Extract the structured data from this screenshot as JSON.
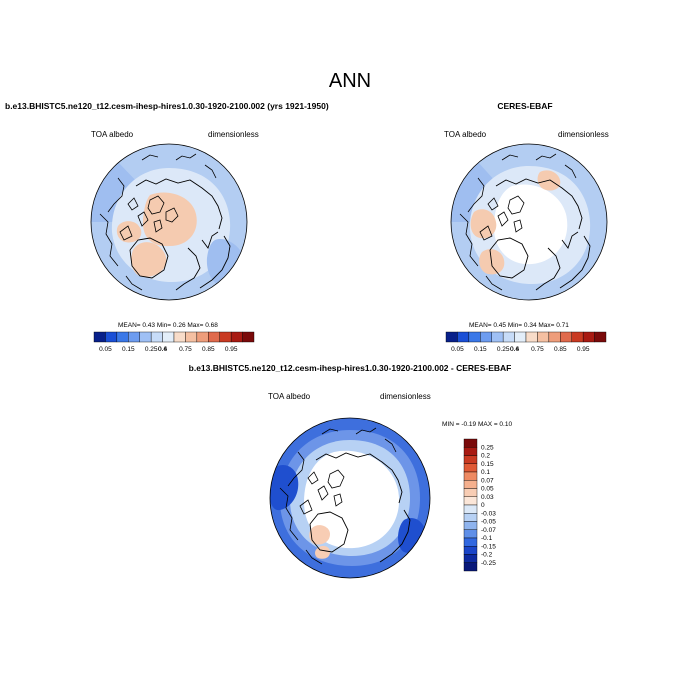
{
  "page": {
    "title": "ANN"
  },
  "panels": [
    {
      "id": "model",
      "heading": "b.e13.BHISTC5.ne120_t12.cesm-ihesp-hires1.0.30-1920-2100.002 (yrs 1921-1950)",
      "left_label": "TOA albedo",
      "right_label": "dimensionless",
      "stats": "MEAN=  0.43  Min=   0.26  Max=   0.68"
    },
    {
      "id": "obs",
      "heading": "CERES-EBAF",
      "left_label": "TOA albedo",
      "right_label": "dimensionless",
      "stats": "MEAN=  0.45  Min=  0.34  Max=   0.71"
    },
    {
      "id": "diff",
      "heading": "b.e13.BHISTC5.ne120_t12.cesm-ihesp-hires1.0.30-1920-2100.002 - CERES-EBAF",
      "left_label": "TOA albedo",
      "right_label": "dimensionless",
      "stats": "MIN = -0.19 MAX =   0.10"
    }
  ],
  "chart_data": [
    {
      "type": "heatmap",
      "title": "b.e13.BHISTC5.ne120_t12.cesm-ihesp-hires1.0.30-1920-2100.002 (yrs 1921-1950)",
      "projection": "north-polar-stereographic",
      "colorbar": {
        "orientation": "horizontal",
        "tick_labels": [
          "0.05",
          "0.15",
          "0.25",
          "0.4",
          "0.6",
          "0.75",
          "0.85",
          "0.95"
        ],
        "colors": [
          "#08208a",
          "#1a4fd6",
          "#3a78e8",
          "#6d9cf0",
          "#9fc0f5",
          "#c7dcf8",
          "#e3eef9",
          "#f8dcc9",
          "#f5c0a2",
          "#ee9d7b",
          "#e06a4c",
          "#c93a22",
          "#a81a12",
          "#7a0a0a"
        ]
      },
      "stats": {
        "mean": 0.43,
        "min": 0.26,
        "max": 0.68
      }
    },
    {
      "type": "heatmap",
      "title": "CERES-EBAF",
      "projection": "north-polar-stereographic",
      "colorbar": {
        "orientation": "horizontal",
        "tick_labels": [
          "0.05",
          "0.15",
          "0.25",
          "0.4",
          "0.6",
          "0.75",
          "0.85",
          "0.95"
        ],
        "colors": [
          "#08208a",
          "#1a4fd6",
          "#3a78e8",
          "#6d9cf0",
          "#9fc0f5",
          "#c7dcf8",
          "#e3eef9",
          "#f8dcc9",
          "#f5c0a2",
          "#ee9d7b",
          "#e06a4c",
          "#c93a22",
          "#a81a12",
          "#7a0a0a"
        ]
      },
      "stats": {
        "mean": 0.45,
        "min": 0.34,
        "max": 0.71
      }
    },
    {
      "type": "heatmap",
      "title": "b.e13.BHISTC5.ne120_t12.cesm-ihesp-hires1.0.30-1920-2100.002 - CERES-EBAF",
      "projection": "north-polar-stereographic",
      "colorbar": {
        "orientation": "vertical",
        "tick_labels": [
          "0.25",
          "0.2",
          "0.15",
          "0.1",
          "0.07",
          "0.05",
          "0.03",
          "0",
          "-0.03",
          "-0.05",
          "-0.07",
          "-0.1",
          "-0.15",
          "-0.2",
          "-0.25"
        ],
        "colors": [
          "#7a0a0a",
          "#a81a12",
          "#c93a22",
          "#e05a36",
          "#ee8a62",
          "#f5b08e",
          "#f8cdb4",
          "#fbe6d8",
          "#dbe8f7",
          "#b7d1f4",
          "#8fb4ee",
          "#5f8fe8",
          "#3168e0",
          "#1a45c8",
          "#0d2aa0",
          "#08187a"
        ]
      },
      "stats": {
        "min": -0.19,
        "max": 0.1
      }
    }
  ],
  "colors": {
    "ocean_model": "#b3cdf2",
    "ocean_obs": "#b3cdf2",
    "ocean_diff": "#3e6fdd",
    "land_warm": "#f5cbb0",
    "light_blue": "#dce8f8",
    "coast": "#000000"
  }
}
